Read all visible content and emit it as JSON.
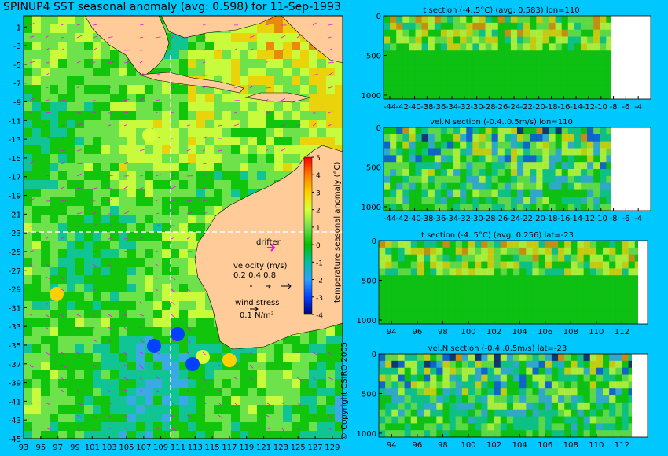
{
  "title": "SPINUP4 SST seasonal anomaly (avg: 0.598) for 11-Sep-1993",
  "copyright": "© Copyright CSIRO 2005",
  "map": {
    "lat_ticks": [
      "-1",
      "-3",
      "-5",
      "-7",
      "-9",
      "-11",
      "-13",
      "-15",
      "-17",
      "-19",
      "-21",
      "-23",
      "-25",
      "-27",
      "-29",
      "-31",
      "-33",
      "-35",
      "-37",
      "-39",
      "-41",
      "-43",
      "-45"
    ],
    "lon_ticks": [
      "93",
      "95",
      "97",
      "99",
      "101",
      "103",
      "105",
      "107",
      "109",
      "111",
      "113",
      "115",
      "117",
      "119",
      "121",
      "123",
      "125",
      "127",
      "129"
    ],
    "colorbar": {
      "label": "temperature seasonal anomaly (°C)",
      "ticks": [
        "5",
        "4",
        "3",
        "2",
        "1",
        "0",
        "-1",
        "-2",
        "-3",
        "-4"
      ],
      "colors": [
        "#ff0000",
        "#ff7a00",
        "#ffd000",
        "#d8ff3a",
        "#6fe24a",
        "#00c000",
        "#00c0a0",
        "#30a0ff",
        "#0040ff",
        "#000080"
      ]
    },
    "drifter_label": "drifter",
    "velocity_label": "velocity (m/s)",
    "velocity_scale": "0.2 0.4 0.8",
    "wind_label": "wind stress",
    "wind_scale": "0.1 N/m²",
    "land_color": "#ffcc99",
    "vector_color": "#ff00ff"
  },
  "chart_data": [
    {
      "type": "heatmap",
      "title": "t section (-4..5°C) (avg: 0.583) lon=110",
      "x_ticks": [
        "-44",
        "-42",
        "-40",
        "-38",
        "-36",
        "-34",
        "-32",
        "-30",
        "-28",
        "-26",
        "-24",
        "-22",
        "-20",
        "-18",
        "-16",
        "-14",
        "-12",
        "-10",
        "-8",
        "-6",
        "-4"
      ],
      "y_ticks": [
        "0",
        "500",
        "1000"
      ],
      "x_range": [
        -45,
        -2
      ],
      "y_range": [
        0,
        1050
      ]
    },
    {
      "type": "heatmap",
      "title": "vel.N section (-0.4..0.5m/s) lon=110",
      "x_ticks": [
        "-44",
        "-42",
        "-40",
        "-38",
        "-36",
        "-34",
        "-32",
        "-30",
        "-28",
        "-26",
        "-24",
        "-22",
        "-20",
        "-18",
        "-16",
        "-14",
        "-12",
        "-10",
        "-8",
        "-6",
        "-4"
      ],
      "y_ticks": [
        "0",
        "500",
        "1000"
      ],
      "x_range": [
        -45,
        -2
      ],
      "y_range": [
        0,
        1050
      ]
    },
    {
      "type": "heatmap",
      "title": "t section (-4..5°C) (avg: 0.256) lat=-23",
      "x_ticks": [
        "94",
        "96",
        "98",
        "100",
        "102",
        "104",
        "106",
        "108",
        "110",
        "112"
      ],
      "y_ticks": [
        "0",
        "500",
        "1000"
      ],
      "x_range": [
        93,
        114
      ],
      "y_range": [
        0,
        1050
      ]
    },
    {
      "type": "heatmap",
      "title": "vel.N section (-0.4..0.5m/s) lat=-23",
      "x_ticks": [
        "94",
        "96",
        "98",
        "100",
        "102",
        "104",
        "106",
        "108",
        "110",
        "112"
      ],
      "y_ticks": [
        "0",
        "500",
        "1000"
      ],
      "x_range": [
        93,
        114
      ],
      "y_range": [
        0,
        1050
      ]
    }
  ]
}
